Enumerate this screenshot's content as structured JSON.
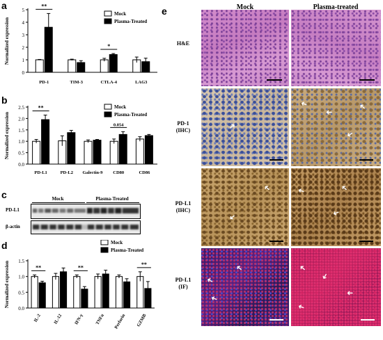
{
  "panels": {
    "a": "a",
    "b": "b",
    "c": "c",
    "d": "d",
    "e": "e"
  },
  "legend": {
    "mock": "Mock",
    "plasma_treated": "Plasma-Treated"
  },
  "chart_data": [
    {
      "type": "bar",
      "panel": "a",
      "categories": [
        "PD-1",
        "TIM-3",
        "CTLA-4",
        "LAG3"
      ],
      "series": [
        {
          "name": "Mock",
          "values": [
            1.0,
            1.0,
            1.0,
            1.0
          ],
          "errors": [
            0.03,
            0.05,
            0.12,
            0.22
          ]
        },
        {
          "name": "Plasma-Treated",
          "values": [
            3.6,
            0.78,
            1.42,
            0.85
          ],
          "errors": [
            1.1,
            0.15,
            0.08,
            0.28
          ]
        }
      ],
      "ylabel": "Normalized expression",
      "ylim": [
        0,
        5
      ],
      "yticks": [
        0,
        1,
        2,
        3,
        4,
        5
      ],
      "annotations": [
        {
          "category": "PD-1",
          "text": "**"
        },
        {
          "category": "CTLA-4",
          "text": "*"
        }
      ]
    },
    {
      "type": "bar",
      "panel": "b",
      "categories": [
        "PD-L1",
        "PD-L2",
        "Galectin-9",
        "CD80",
        "CD86"
      ],
      "series": [
        {
          "name": "Mock",
          "values": [
            1.0,
            1.02,
            1.0,
            1.0,
            1.1
          ],
          "errors": [
            0.08,
            0.22,
            0.06,
            0.1,
            0.1
          ]
        },
        {
          "name": "Plasma-Treated",
          "values": [
            1.95,
            1.38,
            1.05,
            1.3,
            1.25
          ],
          "errors": [
            0.2,
            0.1,
            0.03,
            0.12,
            0.05
          ]
        }
      ],
      "ylabel": "Normalized expression",
      "ylim": [
        0.0,
        2.5
      ],
      "yticks": [
        "0.0",
        "0.5",
        "1.0",
        "1.5",
        "2.0",
        "2.5"
      ],
      "annotations": [
        {
          "category": "PD-L1",
          "text": "**"
        },
        {
          "category": "CD80",
          "text": "0.054"
        }
      ]
    },
    {
      "type": "bar",
      "panel": "d",
      "categories": [
        "IL-2",
        "IL-12",
        "IFN-γ",
        "TNFα",
        "Perforin",
        "GZMB"
      ],
      "series": [
        {
          "name": "Mock",
          "values": [
            1.0,
            1.0,
            1.0,
            1.0,
            1.0,
            1.0
          ],
          "errors": [
            0.05,
            0.1,
            0.05,
            0.08,
            0.05,
            0.15
          ]
        },
        {
          "name": "Plasma-Treated",
          "values": [
            0.8,
            1.15,
            0.6,
            1.08,
            0.83,
            0.62
          ],
          "errors": [
            0.05,
            0.12,
            0.08,
            0.12,
            0.1,
            0.22
          ]
        }
      ],
      "ylabel": "Normalized expression",
      "ylim": [
        0.0,
        1.5
      ],
      "yticks": [
        "0.0",
        "0.5",
        "1.0",
        "1.5"
      ],
      "annotations": [
        {
          "category": "IL-2",
          "text": "**"
        },
        {
          "category": "IFN-γ",
          "text": "**"
        },
        {
          "category": "GZMB",
          "text": "**"
        }
      ]
    }
  ],
  "blot": {
    "groups": [
      "Mock",
      "Plasma-Treated"
    ],
    "rows": [
      "PD-L1",
      "β-actin"
    ]
  },
  "histology": {
    "columns": [
      "Mock",
      "Plasma-treated"
    ],
    "rows": [
      {
        "label": "H&E",
        "sub": ""
      },
      {
        "label": "PD-1",
        "sub": "(IHC)"
      },
      {
        "label": "PD-L1",
        "sub": "(IHC)"
      },
      {
        "label": "PD-L1",
        "sub": "(IF)"
      }
    ]
  }
}
